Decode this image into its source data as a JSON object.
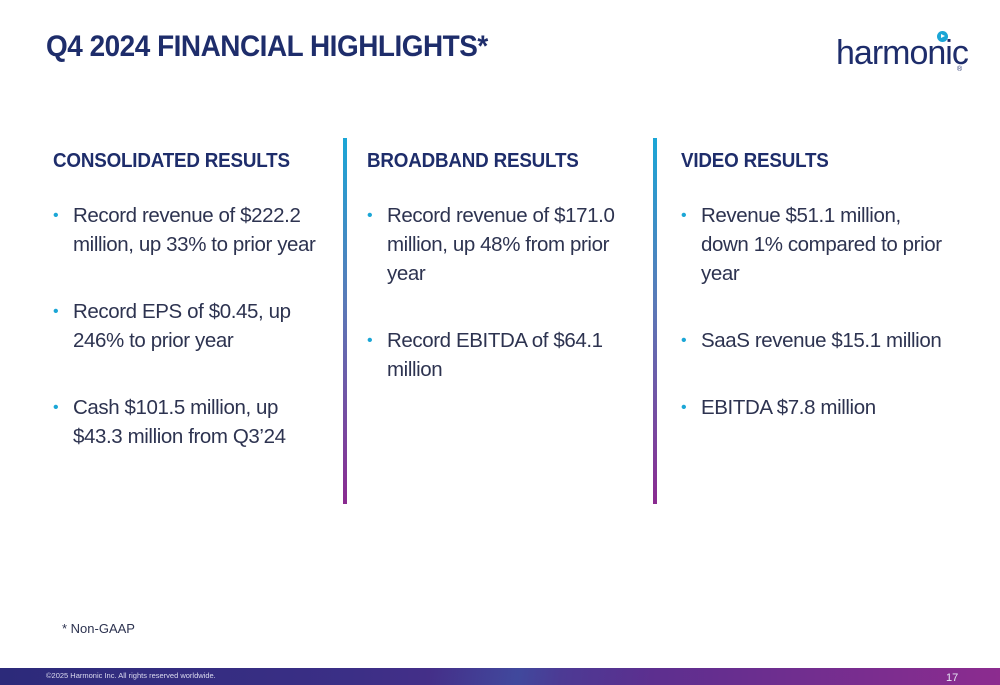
{
  "slide": {
    "title": "Q4 2024 FINANCIAL HIGHLIGHTS*",
    "logo_text": "harmonic",
    "logo_mark": "®"
  },
  "columns": [
    {
      "heading": "CONSOLIDATED RESULTS",
      "bullets": [
        "Record revenue of $222.2 million, up 33% to prior year",
        "Record EPS of $0.45, up 246% to prior year",
        "Cash $101.5 million, up $43.3 million from Q3’24"
      ]
    },
    {
      "heading": "BROADBAND RESULTS",
      "bullets": [
        "Record revenue of $171.0 million, up 48% from prior year",
        "Record EBITDA of $64.1 million"
      ]
    },
    {
      "heading": "VIDEO RESULTS",
      "bullets": [
        "Revenue $51.1 million, down 1% compared to prior year",
        "SaaS revenue $15.1 million",
        "EBITDA $7.8 million"
      ]
    }
  ],
  "footnote": "* Non-GAAP",
  "footer": {
    "copyright": "©2025 Harmonic Inc. All rights reserved worldwide.",
    "page_number": "17"
  },
  "colors": {
    "title": "#1e2d6b",
    "bullet": "#1ba6d6",
    "divider_top": "#1ba6d6",
    "divider_bottom": "#8a2a90"
  },
  "icons": {
    "logo": "harmonic-logo-icon",
    "bullet": "bullet-dot"
  }
}
